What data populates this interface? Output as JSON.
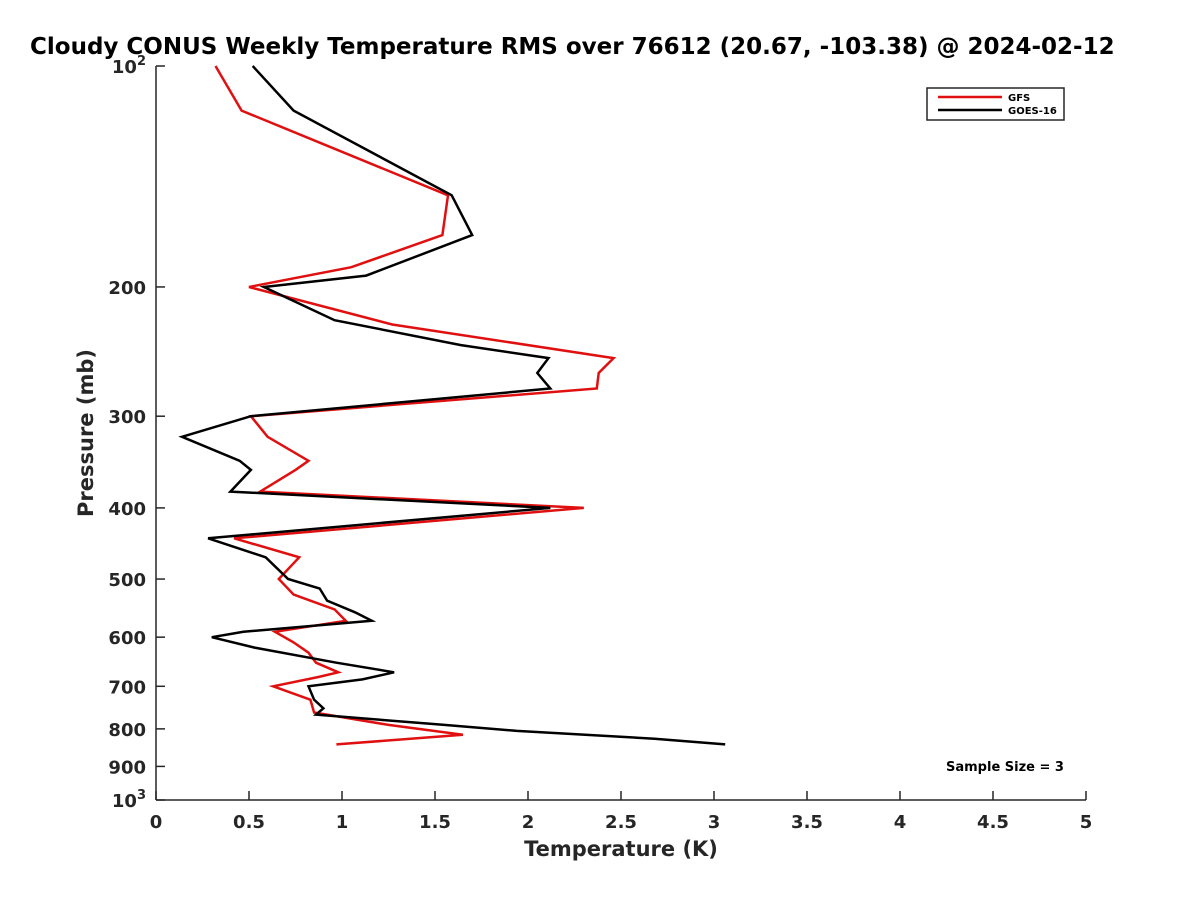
{
  "chart_data": {
    "type": "line",
    "title": "Cloudy CONUS Weekly Temperature RMS over 76612 (20.67, -103.38) @ 2024-02-12",
    "xlabel": "Temperature (K)",
    "ylabel": "Pressure (mb)",
    "xlim": [
      0,
      5
    ],
    "ylim": [
      100,
      1000
    ],
    "yscale": "log",
    "yreversed": true,
    "x_ticks": [
      "0",
      "0.5",
      "1",
      "1.5",
      "2",
      "2.5",
      "3",
      "3.5",
      "4",
      "4.5",
      "5"
    ],
    "x_tick_values": [
      0,
      0.5,
      1,
      1.5,
      2,
      2.5,
      3,
      3.5,
      4,
      4.5,
      5
    ],
    "y_ticks": [
      {
        "base": "10",
        "exp": "2",
        "value": 100
      },
      {
        "base": "200",
        "exp": "",
        "value": 200
      },
      {
        "base": "300",
        "exp": "",
        "value": 300
      },
      {
        "base": "400",
        "exp": "",
        "value": 400
      },
      {
        "base": "500",
        "exp": "",
        "value": 500
      },
      {
        "base": "600",
        "exp": "",
        "value": 600
      },
      {
        "base": "700",
        "exp": "",
        "value": 700
      },
      {
        "base": "800",
        "exp": "",
        "value": 800
      },
      {
        "base": "900",
        "exp": "",
        "value": 900
      },
      {
        "base": "10",
        "exp": "3",
        "value": 1000
      }
    ],
    "legend_position": "top-right",
    "annotation": "Sample Size = 3",
    "series": [
      {
        "name": "GFS",
        "color": "#e01010",
        "points": [
          [
            0.32,
            100
          ],
          [
            0.46,
            115
          ],
          [
            1.57,
            150
          ],
          [
            1.54,
            170
          ],
          [
            1.05,
            188
          ],
          [
            0.5,
            200
          ],
          [
            1.27,
            225
          ],
          [
            2.46,
            250
          ],
          [
            2.38,
            262
          ],
          [
            2.37,
            275
          ],
          [
            0.51,
            300
          ],
          [
            0.6,
            320
          ],
          [
            0.82,
            345
          ],
          [
            0.75,
            355
          ],
          [
            0.56,
            380
          ],
          [
            2.3,
            400
          ],
          [
            0.42,
            440
          ],
          [
            0.77,
            467
          ],
          [
            0.66,
            500
          ],
          [
            0.74,
            525
          ],
          [
            0.96,
            550
          ],
          [
            1.02,
            570
          ],
          [
            0.64,
            590
          ],
          [
            0.74,
            610
          ],
          [
            0.82,
            630
          ],
          [
            0.86,
            650
          ],
          [
            0.98,
            670
          ],
          [
            0.87,
            680
          ],
          [
            0.63,
            700
          ],
          [
            0.83,
            730
          ],
          [
            0.85,
            760
          ],
          [
            1.25,
            790
          ],
          [
            1.65,
            815
          ],
          [
            0.97,
            840
          ]
        ]
      },
      {
        "name": "GOES-16",
        "color": "#000000",
        "points": [
          [
            0.52,
            100
          ],
          [
            0.74,
            115
          ],
          [
            1.59,
            150
          ],
          [
            1.7,
            170
          ],
          [
            1.13,
            193
          ],
          [
            0.58,
            200
          ],
          [
            0.96,
            222
          ],
          [
            1.64,
            240
          ],
          [
            2.11,
            250
          ],
          [
            2.05,
            262
          ],
          [
            2.12,
            275
          ],
          [
            0.51,
            300
          ],
          [
            0.14,
            320
          ],
          [
            0.45,
            345
          ],
          [
            0.51,
            355
          ],
          [
            0.4,
            380
          ],
          [
            2.12,
            400
          ],
          [
            0.28,
            440
          ],
          [
            0.59,
            467
          ],
          [
            0.71,
            500
          ],
          [
            0.88,
            515
          ],
          [
            0.92,
            535
          ],
          [
            1.07,
            555
          ],
          [
            1.16,
            570
          ],
          [
            0.47,
            590
          ],
          [
            0.3,
            600
          ],
          [
            0.53,
            620
          ],
          [
            0.97,
            650
          ],
          [
            1.28,
            670
          ],
          [
            1.11,
            685
          ],
          [
            0.82,
            700
          ],
          [
            0.85,
            730
          ],
          [
            0.9,
            750
          ],
          [
            0.86,
            765
          ],
          [
            1.55,
            790
          ],
          [
            1.94,
            805
          ],
          [
            2.68,
            825
          ],
          [
            3.06,
            840
          ]
        ]
      }
    ]
  }
}
